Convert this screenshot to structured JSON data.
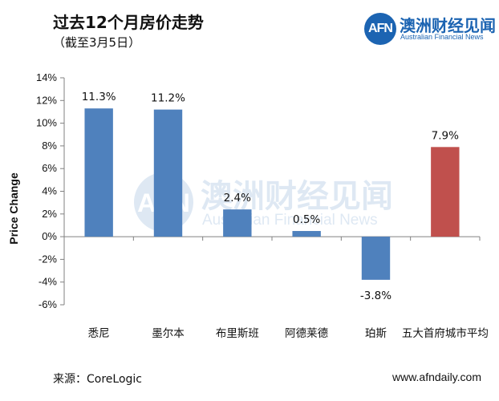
{
  "header": {
    "title": "过去12个月房价走势",
    "subtitle": "（截至3月5日）"
  },
  "logo": {
    "mark": "AFN",
    "name_cn": "澳洲财经见闻",
    "name_en": "Australian Financial News"
  },
  "watermark": {
    "mark": "AFN",
    "name_cn": "澳洲财经见闻",
    "name_en": "Australian Financial News"
  },
  "footer": {
    "source": "来源：CoreLogic",
    "website": "www.afndaily.com"
  },
  "colors": {
    "bar_blue": "#4f81bd",
    "bar_red": "#c0504d",
    "brand": "#1c64b2"
  },
  "chart_data": {
    "type": "bar",
    "title": "",
    "xlabel": "",
    "ylabel": "Price Change",
    "ylim": [
      -6,
      14
    ],
    "yticks": [
      -6,
      -4,
      -2,
      0,
      2,
      4,
      6,
      8,
      10,
      12,
      14
    ],
    "ytick_labels": [
      "-6%",
      "-4%",
      "-2%",
      "0%",
      "2%",
      "4%",
      "6%",
      "8%",
      "10%",
      "12%",
      "14%"
    ],
    "categories": [
      "悉尼",
      "墨尔本",
      "布里斯班",
      "阿德莱德",
      "珀斯",
      "五大首府城市平均"
    ],
    "values": [
      11.3,
      11.2,
      2.4,
      0.5,
      -3.8,
      7.9
    ],
    "data_labels": [
      "11.3%",
      "11.2%",
      "2.4%",
      "0.5%",
      "-3.8%",
      "7.9%"
    ],
    "bar_colors": [
      "#4f81bd",
      "#4f81bd",
      "#4f81bd",
      "#4f81bd",
      "#4f81bd",
      "#c0504d"
    ],
    "grid": false,
    "legend": "none"
  }
}
